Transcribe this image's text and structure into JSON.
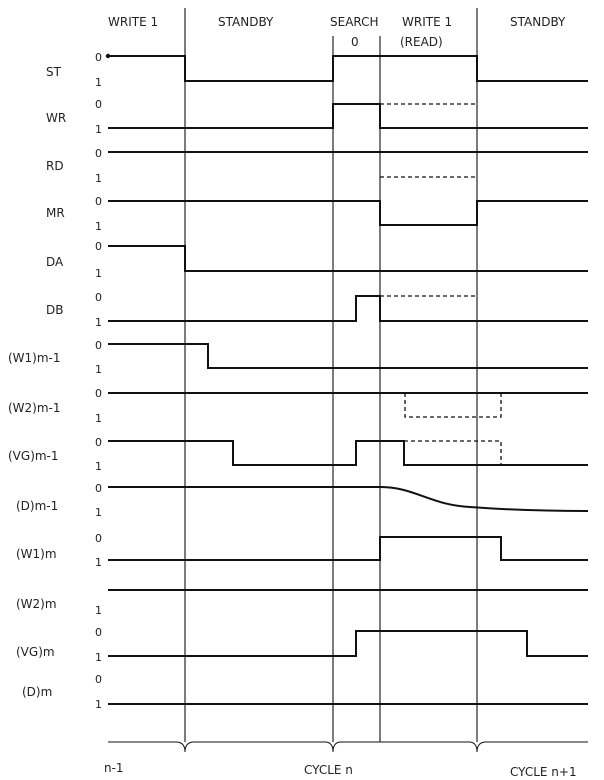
{
  "phases": [
    {
      "id": "write1",
      "label": "WRITE 1",
      "sub": ""
    },
    {
      "id": "standby",
      "label": "STANDBY",
      "sub": ""
    },
    {
      "id": "search",
      "label": "SEARCH",
      "sub": "0"
    },
    {
      "id": "write1read",
      "label": "WRITE 1",
      "sub": "(READ)"
    },
    {
      "id": "standby2",
      "label": "STANDBY",
      "sub": ""
    }
  ],
  "signals": [
    {
      "id": "st",
      "label": "ST"
    },
    {
      "id": "wr",
      "label": "WR"
    },
    {
      "id": "rd",
      "label": "RD"
    },
    {
      "id": "mr",
      "label": "MR"
    },
    {
      "id": "da",
      "label": "DA"
    },
    {
      "id": "db",
      "label": "DB"
    },
    {
      "id": "w1m1",
      "label": "(W1)m-1"
    },
    {
      "id": "w2m1",
      "label": "(W2)m-1"
    },
    {
      "id": "vgm1",
      "label": "(VG)m-1"
    },
    {
      "id": "dm1",
      "label": "(D)m-1"
    },
    {
      "id": "w1m",
      "label": "(W1)m"
    },
    {
      "id": "w2m",
      "label": "(W2)m"
    },
    {
      "id": "vgm",
      "label": "(VG)m"
    },
    {
      "id": "dm",
      "label": "(D)m"
    }
  ],
  "level_labels": {
    "low": "0",
    "high": "1"
  },
  "cycles": [
    {
      "id": "prev",
      "label": "n-1"
    },
    {
      "id": "current",
      "label": "CYCLE n"
    },
    {
      "id": "next",
      "label": "CYCLE n+1"
    }
  ]
}
